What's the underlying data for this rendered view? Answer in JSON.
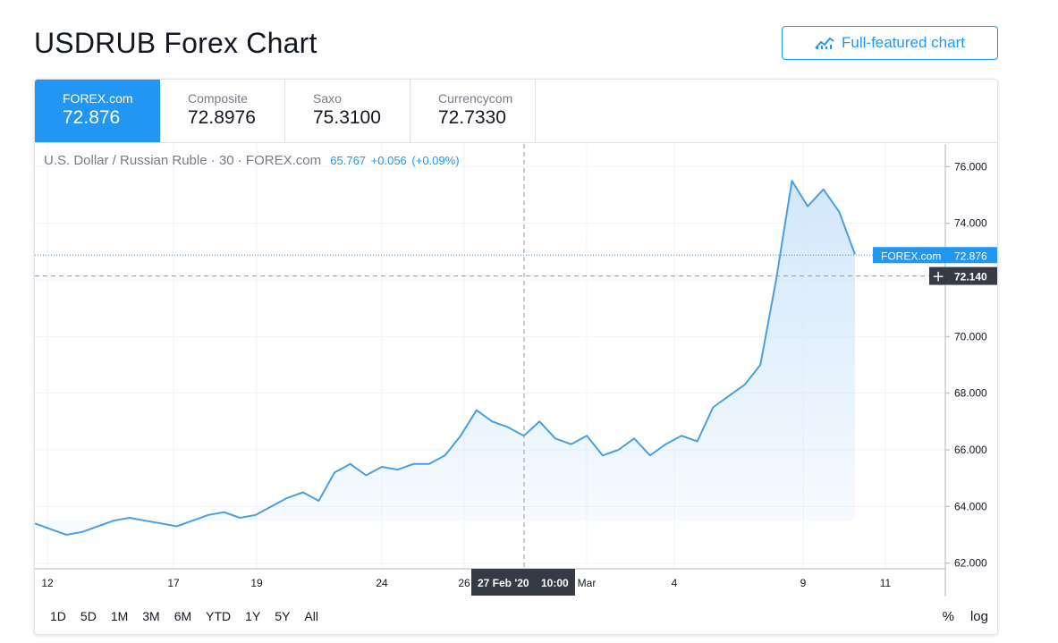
{
  "page": {
    "title": "USDRUB Forex Chart",
    "full_featured_label": "Full-featured chart"
  },
  "tabs": [
    {
      "source": "FOREX.com",
      "price": "72.876",
      "active": true
    },
    {
      "source": "Composite",
      "price": "72.8976",
      "active": false
    },
    {
      "source": "Saxo",
      "price": "75.3100",
      "active": false
    },
    {
      "source": "Currencycom",
      "price": "72.7330",
      "active": false
    }
  ],
  "legend": {
    "symbol": "U.S. Dollar / Russian Ruble · 30 · FOREX.com",
    "last": "65.767",
    "change": "+0.056",
    "change_pct": "(+0.09%)"
  },
  "labels": {
    "price_tag_source": "FOREX.com",
    "price_tag_value": "72.876",
    "crosshair_value": "72.140",
    "crosshair_date": "27 Feb '20",
    "crosshair_time": "10:00"
  },
  "range_buttons": [
    "1D",
    "5D",
    "1M",
    "3M",
    "6M",
    "YTD",
    "1Y",
    "5Y",
    "All"
  ],
  "scale_options": [
    "%",
    "log"
  ],
  "colors": {
    "accent": "#2196f3",
    "line": "#4a9fe0",
    "area_top": "#cfe6fb",
    "text": "#131722",
    "muted": "#787b86"
  },
  "chart_data": {
    "type": "area",
    "title": "U.S. Dollar / Russian Ruble · 30 · FOREX.com",
    "xlabel": "",
    "ylabel": "",
    "ylim": [
      61.8,
      76.8
    ],
    "y_ticks": [
      "62.000",
      "64.000",
      "66.000",
      "68.000",
      "70.000",
      "72.000",
      "74.000",
      "76.000"
    ],
    "x_ticks": [
      "12",
      "17",
      "19",
      "24",
      "26",
      "Mar",
      "4",
      "9",
      "11"
    ],
    "grid": true,
    "points": [
      [
        0.0,
        63.4
      ],
      [
        1.0,
        63.2
      ],
      [
        2.0,
        63.0
      ],
      [
        3.0,
        63.1
      ],
      [
        4.0,
        63.3
      ],
      [
        5.0,
        63.5
      ],
      [
        6.0,
        63.6
      ],
      [
        7.0,
        63.5
      ],
      [
        8.0,
        63.4
      ],
      [
        9.0,
        63.3
      ],
      [
        10.0,
        63.5
      ],
      [
        11.0,
        63.7
      ],
      [
        12.0,
        63.8
      ],
      [
        13.0,
        63.6
      ],
      [
        14.0,
        63.7
      ],
      [
        15.0,
        64.0
      ],
      [
        16.0,
        64.3
      ],
      [
        17.0,
        64.5
      ],
      [
        18.0,
        64.2
      ],
      [
        19.0,
        65.2
      ],
      [
        20.0,
        65.5
      ],
      [
        21.0,
        65.1
      ],
      [
        22.0,
        65.4
      ],
      [
        23.0,
        65.3
      ],
      [
        24.0,
        65.5
      ],
      [
        25.0,
        65.5
      ],
      [
        26.0,
        65.8
      ],
      [
        27.0,
        66.5
      ],
      [
        28.0,
        67.4
      ],
      [
        29.0,
        67.0
      ],
      [
        30.0,
        66.8
      ],
      [
        31.0,
        66.5
      ],
      [
        32.0,
        67.0
      ],
      [
        33.0,
        66.4
      ],
      [
        34.0,
        66.2
      ],
      [
        35.0,
        66.5
      ],
      [
        36.0,
        65.8
      ],
      [
        37.0,
        66.0
      ],
      [
        38.0,
        66.4
      ],
      [
        39.0,
        65.8
      ],
      [
        40.0,
        66.2
      ],
      [
        41.0,
        66.5
      ],
      [
        42.0,
        66.3
      ],
      [
        43.0,
        67.5
      ],
      [
        44.0,
        67.9
      ],
      [
        45.0,
        68.3
      ],
      [
        46.0,
        69.0
      ],
      [
        47.0,
        72.0
      ],
      [
        48.0,
        75.5
      ],
      [
        49.0,
        74.6
      ],
      [
        50.0,
        75.2
      ],
      [
        51.0,
        74.4
      ],
      [
        52.0,
        72.9
      ]
    ]
  }
}
